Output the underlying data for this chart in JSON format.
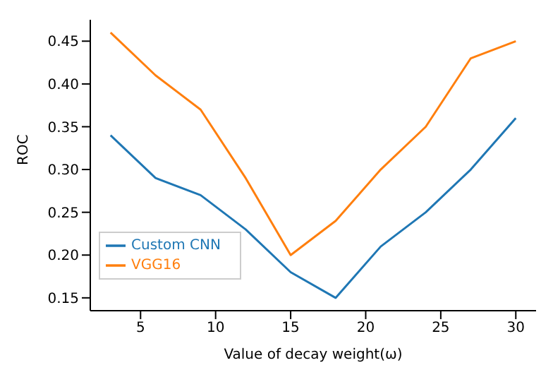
{
  "chart_data": {
    "type": "line",
    "xlabel": "Value of decay weight(ω)",
    "ylabel": "ROC",
    "x": [
      3,
      6,
      9,
      12,
      15,
      18,
      21,
      24,
      27,
      30
    ],
    "series": [
      {
        "name": "Custom CNN",
        "color": "#1f77b4",
        "values": [
          0.34,
          0.29,
          0.27,
          0.23,
          0.18,
          0.15,
          0.21,
          0.25,
          0.3,
          0.36
        ]
      },
      {
        "name": "VGG16",
        "color": "#ff7f0e",
        "values": [
          0.46,
          0.41,
          0.37,
          0.29,
          0.2,
          0.24,
          0.3,
          0.35,
          0.43,
          0.45
        ]
      }
    ],
    "xlim": [
      1.65,
      31.35
    ],
    "xticks": [
      5,
      10,
      15,
      20,
      25,
      30
    ],
    "ylim": [
      0.135,
      0.475
    ],
    "yticks": [
      0.15,
      {
        "value": 0.2,
        "label": "0.20"
      },
      0.25,
      {
        "value": 0.3,
        "label": "0.30"
      },
      0.35,
      {
        "value": 0.4,
        "label": "0.40"
      },
      0.45
    ],
    "legend": "bottom left",
    "grid": false,
    "marker": "none",
    "line_style": "solid"
  }
}
